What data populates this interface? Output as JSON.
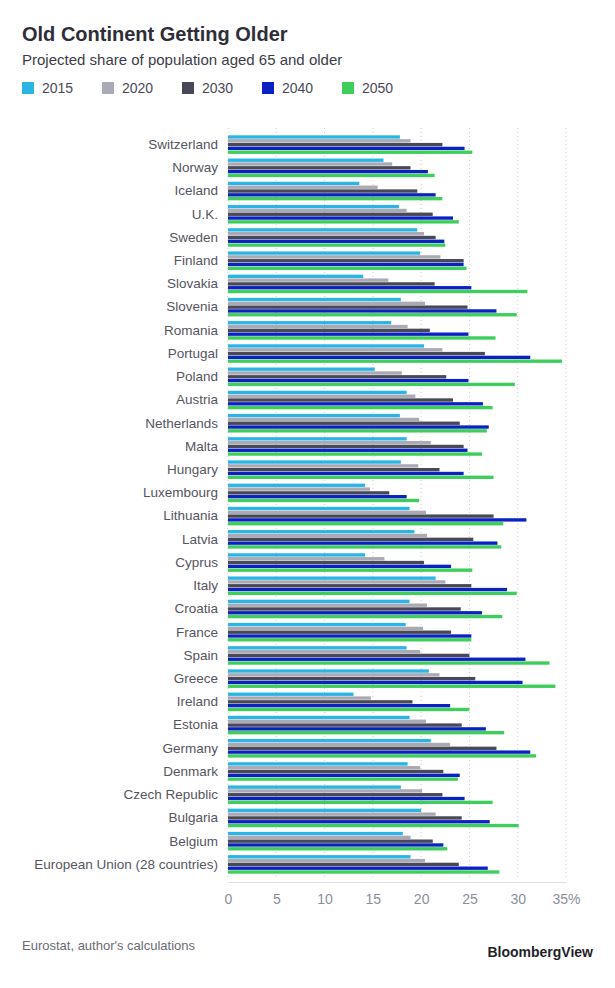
{
  "chart_data": {
    "type": "bar",
    "orientation": "horizontal",
    "title": "Old Continent Getting Older",
    "subtitle": "Projected share of population aged 65 and older",
    "source": "Eurostat, author's calculations",
    "credit": "BloombergView",
    "grid": true,
    "legend": "top-left",
    "categories": [
      "Switzerland",
      "Norway",
      "Iceland",
      "U.K.",
      "Sweden",
      "Finland",
      "Slovakia",
      "Slovenia",
      "Romania",
      "Portugal",
      "Poland",
      "Austria",
      "Netherlands",
      "Malta",
      "Hungary",
      "Luxembourg",
      "Lithuania",
      "Latvia",
      "Cyprus",
      "Italy",
      "Croatia",
      "France",
      "Spain",
      "Greece",
      "Ireland",
      "Estonia",
      "Germany",
      "Denmark",
      "Czech Republic",
      "Bulgaria",
      "Belgium",
      "European Union (28 countries)"
    ],
    "series": [
      {
        "name": "2015",
        "color": "#2bb5e6",
        "values": [
          17.8,
          16.1,
          13.6,
          17.7,
          19.6,
          19.9,
          14.0,
          17.9,
          16.9,
          20.3,
          15.2,
          18.5,
          17.8,
          18.5,
          17.9,
          14.2,
          18.8,
          19.3,
          14.2,
          21.5,
          18.8,
          18.4,
          18.5,
          20.8,
          13.0,
          18.8,
          21.0,
          18.6,
          17.9,
          20.0,
          18.1,
          18.9
        ]
      },
      {
        "name": "2020",
        "color": "#a9aab4",
        "values": [
          18.9,
          17.0,
          15.5,
          18.5,
          20.3,
          22.0,
          16.6,
          20.4,
          18.6,
          22.2,
          18.0,
          19.4,
          19.8,
          21.0,
          19.7,
          14.7,
          20.5,
          20.6,
          16.2,
          22.5,
          20.6,
          20.2,
          19.9,
          21.9,
          14.8,
          20.5,
          23.0,
          19.9,
          20.1,
          21.5,
          18.9,
          20.4
        ]
      },
      {
        "name": "2030",
        "color": "#484856",
        "values": [
          22.2,
          18.9,
          19.6,
          21.2,
          21.5,
          24.4,
          21.4,
          24.8,
          20.9,
          26.6,
          22.6,
          23.3,
          24.0,
          24.4,
          21.9,
          16.7,
          27.5,
          25.4,
          20.3,
          25.2,
          24.1,
          23.1,
          25.0,
          25.6,
          19.1,
          24.2,
          27.8,
          22.3,
          22.2,
          24.2,
          21.2,
          23.9
        ]
      },
      {
        "name": "2040",
        "color": "#0a22c2",
        "values": [
          24.5,
          20.7,
          21.5,
          23.3,
          22.4,
          24.4,
          25.2,
          27.8,
          24.9,
          31.3,
          24.9,
          26.4,
          27.0,
          24.8,
          24.4,
          18.5,
          30.9,
          27.9,
          23.1,
          28.9,
          26.3,
          25.2,
          30.8,
          30.5,
          23.0,
          26.7,
          31.3,
          24.0,
          24.5,
          27.1,
          22.3,
          26.9
        ]
      },
      {
        "name": "2050",
        "color": "#3dce5b",
        "values": [
          25.3,
          21.4,
          22.2,
          23.9,
          22.5,
          24.7,
          31.0,
          29.9,
          27.7,
          34.6,
          29.7,
          27.4,
          26.8,
          26.3,
          27.5,
          19.8,
          28.5,
          28.3,
          25.3,
          29.9,
          28.4,
          25.2,
          33.3,
          33.9,
          25.0,
          28.6,
          31.9,
          23.8,
          27.4,
          30.1,
          22.7,
          28.1
        ]
      }
    ],
    "xlim": [
      0,
      35
    ],
    "xticks": [
      0,
      5,
      10,
      15,
      20,
      25,
      30,
      {
        "value": 35,
        "label": "35%"
      }
    ]
  }
}
